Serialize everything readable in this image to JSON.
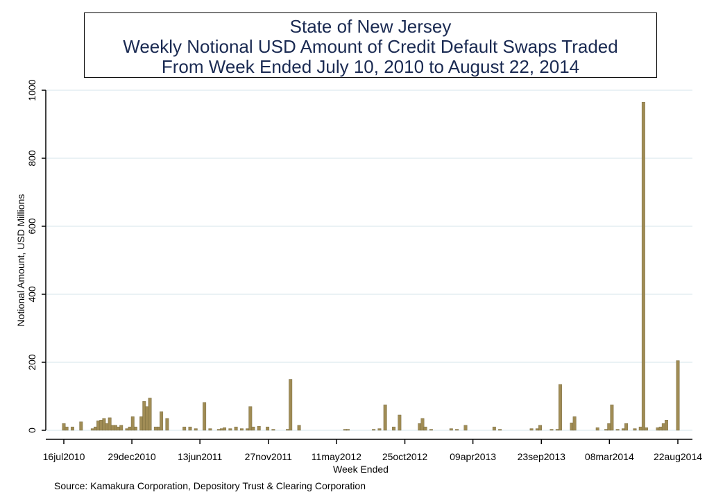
{
  "chart_data": {
    "type": "bar",
    "title_lines": [
      "State of New Jersey",
      "Weekly Notional USD Amount of Credit Default Swaps Traded",
      "From Week Ended July 10, 2010 to August 22, 2014"
    ],
    "xlabel": "Week Ended",
    "ylabel": "Notional Amount, USD Millions",
    "ylim": [
      0,
      1000
    ],
    "y_ticks": [
      0,
      200,
      400,
      600,
      800,
      1000
    ],
    "x_ticks": [
      "16jul2010",
      "29dec2010",
      "13jun2011",
      "27nov2011",
      "11may2012",
      "25oct2012",
      "09apr2013",
      "23sep2013",
      "08mar2014",
      "22aug2014"
    ],
    "grid": true,
    "bar_color": "#a08c55",
    "bars": [
      {
        "week": "2010-07-16",
        "value": 20
      },
      {
        "week": "2010-07-23",
        "value": 10
      },
      {
        "week": "2010-08-06",
        "value": 10
      },
      {
        "week": "2010-08-27",
        "value": 25
      },
      {
        "week": "2010-09-24",
        "value": 5
      },
      {
        "week": "2010-10-01",
        "value": 10
      },
      {
        "week": "2010-10-08",
        "value": 28
      },
      {
        "week": "2010-10-15",
        "value": 30
      },
      {
        "week": "2010-10-22",
        "value": 35
      },
      {
        "week": "2010-10-29",
        "value": 20
      },
      {
        "week": "2010-11-05",
        "value": 37
      },
      {
        "week": "2010-11-12",
        "value": 15
      },
      {
        "week": "2010-11-19",
        "value": 15
      },
      {
        "week": "2010-11-26",
        "value": 10
      },
      {
        "week": "2010-12-03",
        "value": 15
      },
      {
        "week": "2010-12-17",
        "value": 5
      },
      {
        "week": "2010-12-24",
        "value": 10
      },
      {
        "week": "2010-12-31",
        "value": 40
      },
      {
        "week": "2011-01-07",
        "value": 10
      },
      {
        "week": "2011-01-21",
        "value": 40
      },
      {
        "week": "2011-01-28",
        "value": 85
      },
      {
        "week": "2011-02-04",
        "value": 70
      },
      {
        "week": "2011-02-11",
        "value": 95
      },
      {
        "week": "2011-02-25",
        "value": 10
      },
      {
        "week": "2011-03-04",
        "value": 10
      },
      {
        "week": "2011-03-11",
        "value": 55
      },
      {
        "week": "2011-03-25",
        "value": 35
      },
      {
        "week": "2011-05-06",
        "value": 10
      },
      {
        "week": "2011-05-20",
        "value": 10
      },
      {
        "week": "2011-06-03",
        "value": 5
      },
      {
        "week": "2011-06-24",
        "value": 82
      },
      {
        "week": "2011-07-08",
        "value": 5
      },
      {
        "week": "2011-07-29",
        "value": 3
      },
      {
        "week": "2011-08-05",
        "value": 5
      },
      {
        "week": "2011-08-12",
        "value": 8
      },
      {
        "week": "2011-08-26",
        "value": 5
      },
      {
        "week": "2011-09-09",
        "value": 10
      },
      {
        "week": "2011-09-23",
        "value": 5
      },
      {
        "week": "2011-10-07",
        "value": 5
      },
      {
        "week": "2011-10-14",
        "value": 70
      },
      {
        "week": "2011-10-21",
        "value": 10
      },
      {
        "week": "2011-11-04",
        "value": 12
      },
      {
        "week": "2011-11-25",
        "value": 10
      },
      {
        "week": "2011-12-09",
        "value": 3
      },
      {
        "week": "2012-01-13",
        "value": 3
      },
      {
        "week": "2012-01-20",
        "value": 150
      },
      {
        "week": "2012-02-10",
        "value": 15
      },
      {
        "week": "2012-06-01",
        "value": 3
      },
      {
        "week": "2012-06-08",
        "value": 3
      },
      {
        "week": "2012-08-10",
        "value": 3
      },
      {
        "week": "2012-08-24",
        "value": 5
      },
      {
        "week": "2012-09-07",
        "value": 75
      },
      {
        "week": "2012-09-28",
        "value": 10
      },
      {
        "week": "2012-10-12",
        "value": 45
      },
      {
        "week": "2012-11-30",
        "value": 20
      },
      {
        "week": "2012-12-07",
        "value": 35
      },
      {
        "week": "2012-12-14",
        "value": 10
      },
      {
        "week": "2012-12-28",
        "value": 3
      },
      {
        "week": "2013-02-15",
        "value": 5
      },
      {
        "week": "2013-03-01",
        "value": 3
      },
      {
        "week": "2013-03-22",
        "value": 15
      },
      {
        "week": "2013-05-31",
        "value": 10
      },
      {
        "week": "2013-06-14",
        "value": 3
      },
      {
        "week": "2013-08-30",
        "value": 5
      },
      {
        "week": "2013-09-13",
        "value": 5
      },
      {
        "week": "2013-09-20",
        "value": 15
      },
      {
        "week": "2013-10-18",
        "value": 3
      },
      {
        "week": "2013-11-01",
        "value": 3
      },
      {
        "week": "2013-11-08",
        "value": 135
      },
      {
        "week": "2013-12-06",
        "value": 22
      },
      {
        "week": "2013-12-13",
        "value": 40
      },
      {
        "week": "2014-02-07",
        "value": 8
      },
      {
        "week": "2014-02-28",
        "value": 3
      },
      {
        "week": "2014-03-07",
        "value": 20
      },
      {
        "week": "2014-03-14",
        "value": 75
      },
      {
        "week": "2014-03-28",
        "value": 3
      },
      {
        "week": "2014-04-11",
        "value": 5
      },
      {
        "week": "2014-04-18",
        "value": 20
      },
      {
        "week": "2014-05-09",
        "value": 5
      },
      {
        "week": "2014-05-23",
        "value": 10
      },
      {
        "week": "2014-05-30",
        "value": 965
      },
      {
        "week": "2014-06-06",
        "value": 8
      },
      {
        "week": "2014-07-04",
        "value": 8
      },
      {
        "week": "2014-07-11",
        "value": 10
      },
      {
        "week": "2014-07-18",
        "value": 20
      },
      {
        "week": "2014-07-25",
        "value": 30
      },
      {
        "week": "2014-08-22",
        "value": 205
      }
    ],
    "source": "Source: Kamakura Corporation, Depository Trust & Clearing Corporation"
  }
}
